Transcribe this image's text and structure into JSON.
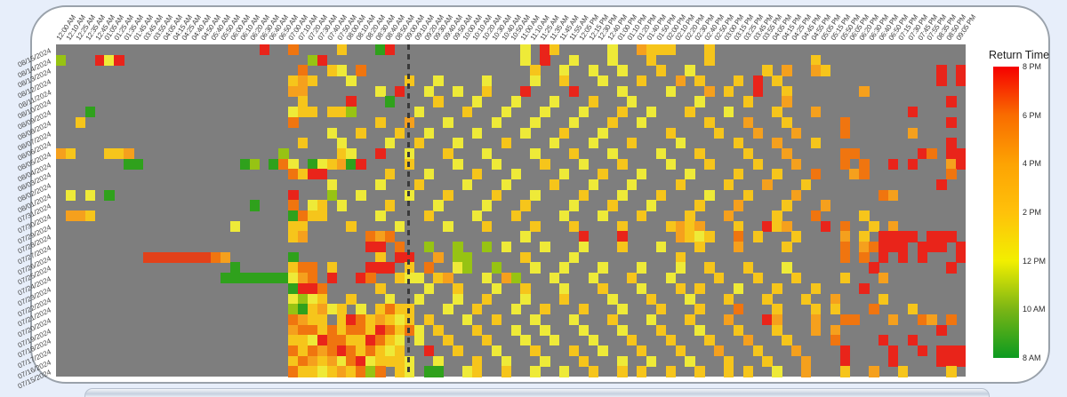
{
  "legend": {
    "title": "Return Time",
    "ticks": [
      "8 PM",
      "6 PM",
      "4 PM",
      "2 PM",
      "12 PM",
      "10 AM",
      "8 AM"
    ]
  },
  "chart_data": {
    "type": "heatmap",
    "xlabel": "",
    "ylabel": "",
    "legend_title": "Return Time",
    "legend_ticks": [
      "8 PM",
      "6 PM",
      "4 PM",
      "2 PM",
      "12 PM",
      "10 AM",
      "8 AM"
    ],
    "no_data_color": "#7e7e7e",
    "now_line_col": 36.35,
    "palette": {
      "G": "#2fa11c",
      "g": "#97c313",
      "Y": "#eeea38",
      "A": "#f6c51b",
      "O": "#f5a01d",
      "o": "#f0750f",
      "r": "#e2411a",
      "R": "#e9241a"
    },
    "x_labels": [
      "12:00 AM",
      "12:10 AM",
      "12:25 AM",
      "12:35 AM",
      "12:45 AM",
      "01:05 AM",
      "01:25 AM",
      "01:35 AM",
      "01:45 AM",
      "03:45 AM",
      "03:55 AM",
      "04:05 AM",
      "04:15 AM",
      "04:25 AM",
      "04:40 AM",
      "04:50 AM",
      "05:40 AM",
      "05:50 AM",
      "06:00 AM",
      "06:10 AM",
      "06:20 AM",
      "06:30 AM",
      "06:40 AM",
      "06:50 AM",
      "07:00 AM",
      "07:10 AM",
      "07:20 AM",
      "07:30 AM",
      "07:40 AM",
      "07:50 AM",
      "08:00 AM",
      "08:10 AM",
      "08:20 AM",
      "08:30 AM",
      "08:40 AM",
      "08:50 AM",
      "09:00 AM",
      "09:10 AM",
      "09:20 AM",
      "09:30 AM",
      "09:40 AM",
      "09:50 AM",
      "10:00 AM",
      "10:10 AM",
      "10:20 AM",
      "10:30 AM",
      "10:40 AM",
      "10:50 AM",
      "11:00 AM",
      "11:10 AM",
      "11:25 AM",
      "11:35 AM",
      "11:45 AM",
      "11:55 AM",
      "12:05 PM",
      "12:15 PM",
      "12:30 PM",
      "12:40 PM",
      "01:00 PM",
      "01:10 PM",
      "01:20 PM",
      "01:40 PM",
      "01:50 PM",
      "02:00 PM",
      "02:10 PM",
      "02:20 PM",
      "02:30 PM",
      "02:40 PM",
      "02:50 PM",
      "03:00 PM",
      "03:15 PM",
      "03:25 PM",
      "03:45 PM",
      "03:55 PM",
      "04:05 PM",
      "04:15 PM",
      "04:25 PM",
      "04:45 PM",
      "04:55 PM",
      "05:05 PM",
      "05:15 PM",
      "05:50 PM",
      "06:05 PM",
      "06:20 PM",
      "06:30 PM",
      "06:40 PM",
      "06:50 PM",
      "07:15 PM",
      "07:30 PM",
      "07:45 PM",
      "07:55 PM",
      "08:35 PM",
      "08:50 PM",
      "09:05 PM"
    ],
    "y_labels": [
      "08/15/2024",
      "08/14/2024",
      "08/13/2024",
      "08/12/2024",
      "08/11/2024",
      "08/10/2024",
      "08/09/2024",
      "08/08/2024",
      "08/07/2024",
      "08/06/2024",
      "08/05/2024",
      "08/04/2024",
      "08/03/2024",
      "08/02/2024",
      "08/01/2024",
      "07/31/2024",
      "07/30/2024",
      "07/29/2024",
      "07/28/2024",
      "07/27/2024",
      "07/26/2024",
      "07/25/2024",
      "07/24/2024",
      "07/23/2024",
      "07/22/2024",
      "07/21/2024",
      "07/20/2024",
      "07/19/2024",
      "07/18/2024",
      "07/17/2024",
      "07/16/2024",
      "07/15/2024"
    ],
    "rows": [
      "21R 24o 29A 33G 34R 48Y 50R 51A 57Y 60O 61-62A 63A 67A",
      "0g 4R 5Y 6R 26g 27R 48Y 50R 53Y 57Y 61A 67A 78A",
      "25o 28A 29Y 31o 49A 52Y 55Y 58Y 62A 65Y 73A 75O 78O 79A 91R 93R",
      "24A 25O 26A 30Y 36A 39Y 44Y 49Y 52A 56Y 60A 64O 66A 70A 72R 74A 91R 93R",
      "24O 25O 33Y 35R 38Y 41Y 44A 48R 53R 58Y 63Y 67O 69A 72R 75A 83O",
      "25A 30R 34G 39A 43Y 47Y 51Y 55A 59Y 66Y 71A 75O 92R",
      "3G 24Y 25A 26A 28-29A 30g 37Y 42A 46Y 50Y 54Y 58A 61Y 65A 69Y 74A 78O 88R",
      "2A 24o 33A 36O 40Y 45Y 49Y 53Y 57A 60Y 67A 71O 75A 81o 92R",
      "28Y 31A 35A 38Y 43Y 48Y 52A 56Y 63A 68A 72O 76O 81o 88O",
      "25A 29Y 34Y 37A 41Y 46A 51Y 55Y 59A 64Y 70A 74O 78A 92R",
      "0O 1A 5-6A 7O 23g 29A 30Y 33R 36Y 40A 44Y 49Y 53A 57Y 62Y 66A 71A 75O 81o 82o 89R 90o 92R 93R",
      "7-8G 19G 20g 22G 23o 24Y 26G 27Y 28A 29O 30G 31R 36A 41Y 45Y 50A 54Y 58A 63Y 67A 72A 76O 81o 83o 86R 88R 92O 93R",
      "24o 25A 26-27R 34A 38Y 43A 47Y 52Y 56A 60Y 65Y 70A 74A 78o 82O 83o 92o",
      "28Y 33Y 37A 42Y 46Y 51A 55Y 59Y 64A 69A 73O 77A 91R",
      "1Y 3Y 5G 24R 28g 31Y 36Y 40A 45A 49Y 54A 58Y 62A 67Y 71A 76O 85o 86O",
      "20G 24o 26Y 27A 29Y 34A 39Y 44Y 48A 53Y 57A 61Y 66A 70O 75A 79O",
      "1-2O 3A 24G 25o 26-27A 33Y 38A 43Y 47A 52Y 56Y 60A 65A 69O 74A 78o 83A",
      "18Y 24-25A 30A 35Y 40Y 44A 49A 53A 58A 63A 64O 65A 66O 70A 73R 74A 75O 79R 81o 84A 86O",
      "24A 25O 32o 33O 34o 48Y 54R 58R 64O 65A 66Y 67A 70o 72A 76A 81O 83A 85R 86R 87R 88R 90R 91R 92R",
      "32-33R 35o 38g 41g 44g 46Y 50Y 54Y 58A 62Y 66A 70O 75A 81o 83O 84o 85R 86R 87R 89R 90R 91R 93R",
      "9-15r 16o 17O 24G 33A 35-36R 39O 41-42g 48A 53Y 64A 81o 83o 85R 87R 89R 93R",
      "18G 24A 25-26o 28A 32-34R 36A 38o 41Y 42g 45g 49Y 52Y 56Y 60Y 64Y 67A 71A 75Y 84R 92R",
      "17-23G 24Y 25O 26o 28R 31R 32o 35A 36-37Y 39A 40O 44Y 46O 47g 51Y 55Y 59A 63Y 68A 72A 76A 81A 85O",
      "24G 25-26R 27o 33A 38Y 41A 45Y 48A 52Y 56A 60Y 64A 66A 70Y 74A 78A 83R",
      "24Y 25g 26Y 27A 30A 34Y 37Y 41Y 44A 48Y 52A 57Y 61A 65Y 69A 73A 77A 80O 85A",
      "24g 25G 26A 27O 28Y 29A 31Y 33A 34o 35A 36A 40Y 43A 47Y 50A 54A 58Y 62A 66A 70o 74A 78A 80A 84o 88A",
      "24o 25O 26A 27A 29A 30R 31o 32A 33O 34A 35Y 36A 38A 42Y 45A 49Y 53Y 57A 61Y 65A 69O 73R 74O 78O 81o 82o 86O 89o 90O 92o",
      "24O 25o 26o 27A 28o 29A 30o 31o 32A 33R 34o 35A 36o 37Y 39A 43A 47Y 50Y 54Y 58Y 62A 66Y 70A 74A 78O 80O 91R",
      "24A 25A 26Y 27R 28o 29o 30A 31A 32R 33o 34A 35Y 37Y 40A 44A 48Y 51Y 55Y 59A 63A 67A 71O 75A 80o 85R 88R",
      "24o 25A 26o 27O 28o 29R 30o 31A 32o 33A 34Y 35A 38R 41A 45Y 49A 53A 56Y 60A 64A 68O 72A 76O 81R 86R 89R 91R 92R 93R",
      "24A 25o 26O 27A 28O 29Y 30o 31R 32Y 33A 34A 35A 36Y 39Y 43A 46Y 50Y 54A 58Y 61Y 65Y 69A 73A 77O 81R 86R 91R 92R 93R",
      "24o 25A 26A 27Y 28A 29O 30A 31o 32g 33o 35A 36Y 38G 39G 42Y 43A 46A 49Y 52Y 55A 58A 60A 63A 66A 69A 71A 74Y 77O 81A 84O 87A 92A"
    ]
  }
}
